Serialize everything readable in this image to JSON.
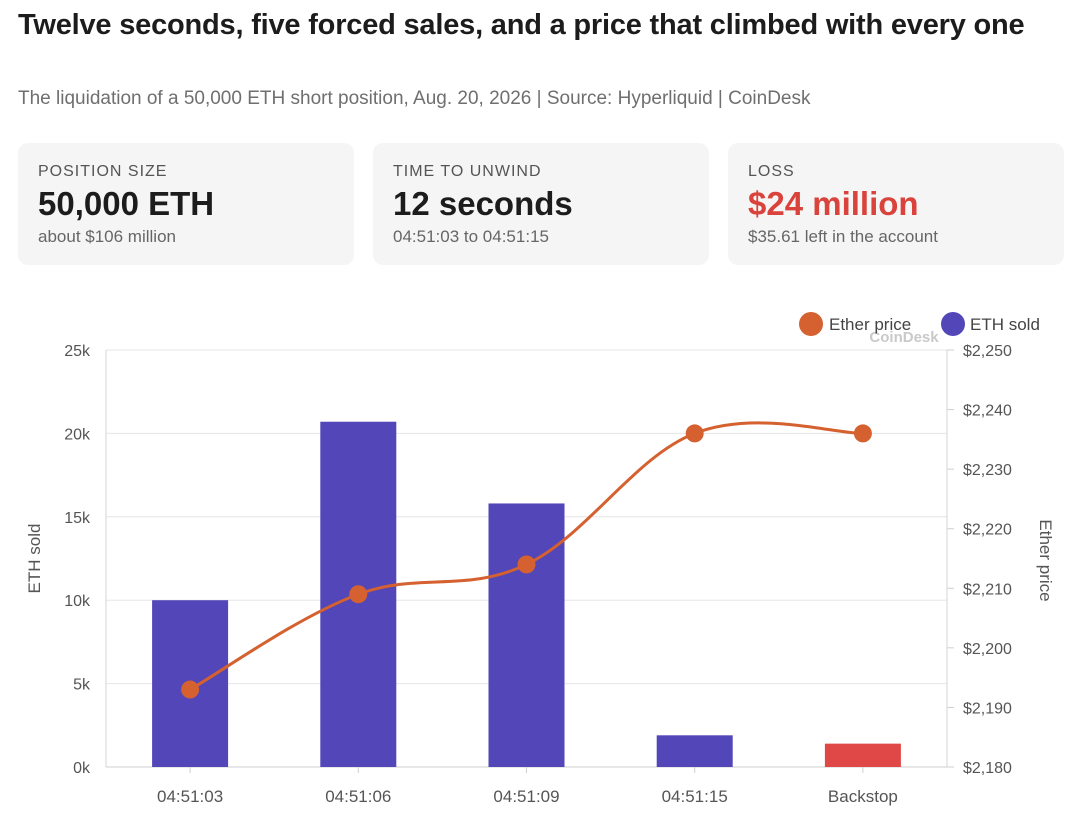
{
  "header": {
    "title": "Twelve seconds, five forced sales, and a price that climbed with every one",
    "subtitle": "The liquidation of a 50,000 ETH short position, Aug. 20, 2026 | Source: Hyperliquid | CoinDesk"
  },
  "cards": [
    {
      "label": "POSITION SIZE",
      "value": "50,000 ETH",
      "note": "about $106 million"
    },
    {
      "label": "TIME TO UNWIND",
      "value": "12 seconds",
      "note": "04:51:03 to 04:51:15"
    },
    {
      "label": "LOSS",
      "value": "$24 million",
      "note": "$35.61 left in the account"
    }
  ],
  "colors": {
    "bar": "#5246b8",
    "backstop_bar": "#e04848",
    "line": "#d4612f",
    "loss_text": "#d9433c"
  },
  "watermark": "CoinDesk",
  "chart_data": {
    "type": "bar",
    "categories": [
      "04:51:03",
      "04:51:06",
      "04:51:09",
      "04:51:15",
      "Backstop"
    ],
    "series": [
      {
        "name": "ETH sold",
        "type": "bar",
        "axis": "left",
        "values": [
          10000,
          20700,
          15800,
          1900,
          1400
        ]
      },
      {
        "name": "Ether price",
        "type": "line",
        "axis": "right",
        "values": [
          2193,
          2209,
          2214,
          2236,
          2236
        ]
      }
    ],
    "ylabel": "ETH sold",
    "ylabel_right": "Ether price",
    "ylim": [
      0,
      25000
    ],
    "ylim_right": [
      2180,
      2250
    ],
    "yticks": [
      "0k",
      "5k",
      "10k",
      "15k",
      "20k",
      "25k"
    ],
    "yticks_right": [
      "$2,180",
      "$2,190",
      "$2,200",
      "$2,210",
      "$2,220",
      "$2,230",
      "$2,240",
      "$2,250"
    ],
    "legend": {
      "position": "top-right",
      "entries": [
        "Ether price",
        "ETH sold"
      ]
    },
    "grid": true
  }
}
